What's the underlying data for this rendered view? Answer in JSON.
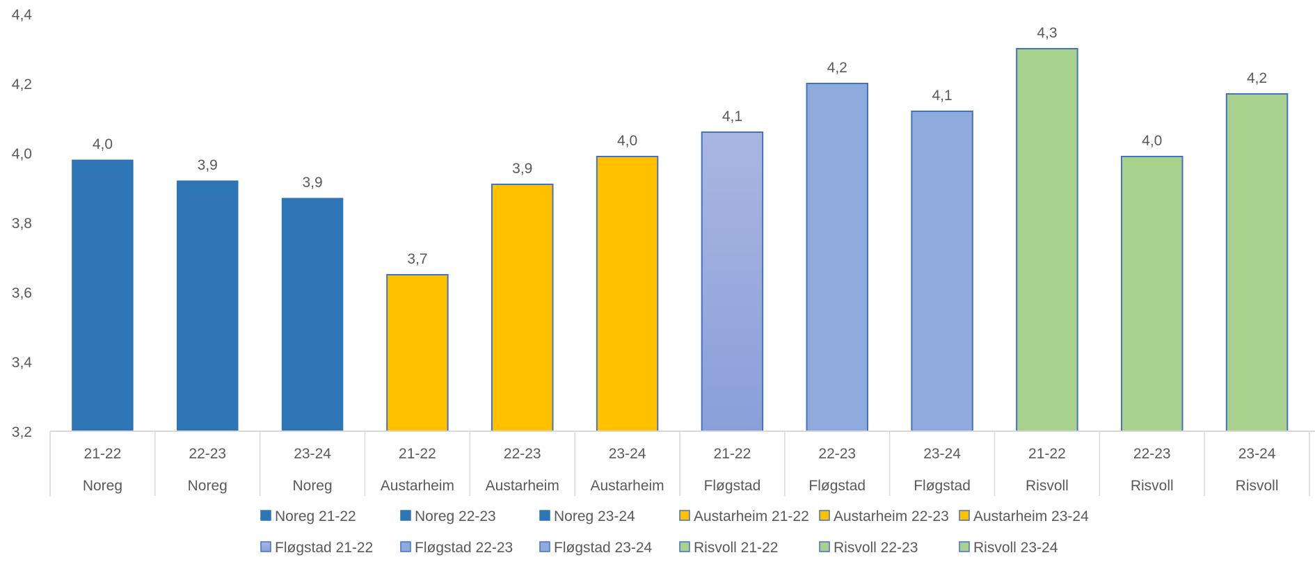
{
  "chart_data": {
    "type": "bar",
    "title": "",
    "xlabel": "",
    "ylabel": "",
    "ylim": [
      3.2,
      4.4
    ],
    "yticks": [
      "3,2",
      "3,4",
      "3,6",
      "3,8",
      "4,0",
      "4,2",
      "4,4"
    ],
    "ytick_values": [
      3.2,
      3.4,
      3.6,
      3.8,
      4.0,
      4.2,
      4.4
    ],
    "grid": false,
    "legend_position": "bottom",
    "categories": [
      {
        "period": "21-22",
        "school": "Noreg"
      },
      {
        "period": "22-23",
        "school": "Noreg"
      },
      {
        "period": "23-24",
        "school": "Noreg"
      },
      {
        "period": "21-22",
        "school": "Austarheim"
      },
      {
        "period": "22-23",
        "school": "Austarheim"
      },
      {
        "period": "23-24",
        "school": "Austarheim"
      },
      {
        "period": "21-22",
        "school": "Fløgstad"
      },
      {
        "period": "22-23",
        "school": "Fløgstad"
      },
      {
        "period": "23-24",
        "school": "Fløgstad"
      },
      {
        "period": "21-22",
        "school": "Risvoll"
      },
      {
        "period": "22-23",
        "school": "Risvoll"
      },
      {
        "period": "23-24",
        "school": "Risvoll"
      }
    ],
    "series": [
      {
        "name": "Noreg 21-22",
        "value": 3.98,
        "label": "4,0",
        "color": "#2E75B6"
      },
      {
        "name": "Noreg 22-23",
        "value": 3.92,
        "label": "3,9",
        "color": "#2E75B6"
      },
      {
        "name": "Noreg 23-24",
        "value": 3.87,
        "label": "3,9",
        "color": "#2E75B6"
      },
      {
        "name": "Austarheim 21-22",
        "value": 3.65,
        "label": "3,7",
        "color": "#FFC000"
      },
      {
        "name": "Austarheim 22-23",
        "value": 3.91,
        "label": "3,9",
        "color": "#FFC000"
      },
      {
        "name": "Austarheim 23-24",
        "value": 3.99,
        "label": "4,0",
        "color": "#FFC000"
      },
      {
        "name": "Fløgstad 21-22",
        "value": 4.06,
        "label": "4,1",
        "color": "#9BAEE0",
        "gradient": [
          "#A9B6E2",
          "#8A9FD9"
        ]
      },
      {
        "name": "Fløgstad 22-23",
        "value": 4.2,
        "label": "4,2",
        "color": "#8FAADC"
      },
      {
        "name": "Fløgstad 23-24",
        "value": 4.12,
        "label": "4,1",
        "color": "#8FAADC"
      },
      {
        "name": "Risvoll 21-22",
        "value": 4.3,
        "label": "4,3",
        "color": "#A9D18E"
      },
      {
        "name": "Risvoll 22-23",
        "value": 3.99,
        "label": "4,0",
        "color": "#A9D18E"
      },
      {
        "name": "Risvoll 23-24",
        "value": 4.17,
        "label": "4,2",
        "color": "#A9D18E"
      }
    ],
    "colors": {
      "outline_light": "#4472C4",
      "tick_text": "#595959",
      "axis_line": "#D9D9D9"
    }
  }
}
